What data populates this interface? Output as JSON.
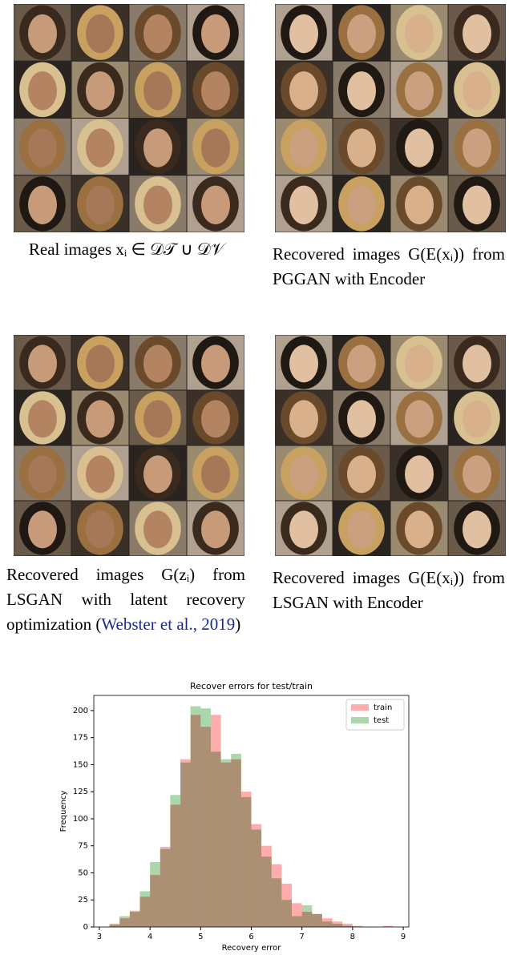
{
  "panels": [
    {
      "caption": "Real images xᵢ ∈ 𝒟𝒯 ∪ 𝒟𝒱"
    },
    {
      "caption": "Recovered images G(E(xᵢ)) from PGGAN with Encoder"
    },
    {
      "caption": "Recovered images G(zᵢ) from LSGAN with latent recovery optimization (",
      "citation": "Webster et al., 2019",
      "caption_end": ")"
    },
    {
      "caption": "Recovered images G(E(xᵢ)) from LSGAN with Encoder"
    }
  ],
  "chart_data": {
    "type": "histogram",
    "title": "Recover errors for test/train",
    "x_label": "Recovery error",
    "y_label": "Frequency",
    "bins": [
      3.0,
      3.2,
      3.4,
      3.6,
      3.8,
      4.0,
      4.2,
      4.4,
      4.6,
      4.8,
      5.0,
      5.2,
      5.4,
      5.6,
      5.8,
      6.0,
      6.2,
      6.4,
      6.6,
      6.8,
      7.0,
      7.2,
      7.4,
      7.6,
      7.8,
      8.0,
      8.2,
      8.4,
      8.6,
      8.8,
      9.0
    ],
    "series": [
      {
        "name": "train",
        "color": "#ff8080",
        "values": [
          0,
          3,
          8,
          15,
          28,
          48,
          74,
          113,
          155,
          196,
          185,
          196,
          152,
          155,
          125,
          95,
          75,
          58,
          40,
          22,
          14,
          12,
          8,
          5,
          3,
          1,
          0,
          0,
          1,
          0
        ]
      },
      {
        "name": "test",
        "color": "#80c080",
        "values": [
          0,
          2,
          10,
          14,
          33,
          60,
          72,
          122,
          152,
          204,
          202,
          162,
          155,
          160,
          120,
          90,
          65,
          45,
          25,
          10,
          20,
          12,
          5,
          3,
          1,
          0,
          0,
          0,
          0,
          0
        ]
      }
    ],
    "xlim": [
      2.89,
      9.11
    ],
    "ylim": [
      0,
      214
    ],
    "xticks": [
      3,
      4,
      5,
      6,
      7,
      8,
      9
    ],
    "yticks": [
      0,
      25,
      50,
      75,
      100,
      125,
      150,
      175,
      200
    ],
    "legend": "upper right"
  }
}
